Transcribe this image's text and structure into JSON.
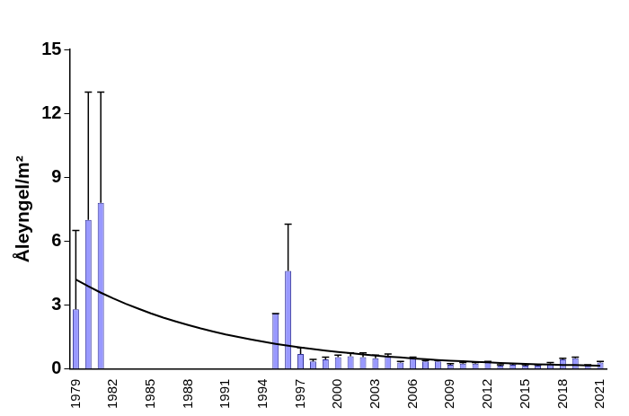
{
  "chart_data": {
    "type": "bar",
    "categories": [
      "1979",
      null,
      null,
      "1982",
      null,
      null,
      "1985",
      null,
      null,
      "1988",
      null,
      null,
      "1991",
      null,
      null,
      "1994",
      null,
      null,
      "1997",
      null,
      null,
      "2000",
      null,
      null,
      "2003",
      null,
      null,
      "2006",
      null,
      null,
      "2009",
      null,
      null,
      "2012",
      null,
      null,
      "2015",
      null,
      null,
      "2018",
      null,
      null,
      "2021"
    ],
    "series": [
      {
        "type": "bar",
        "color": "#9999ff",
        "values": [
          2.8,
          7.0,
          7.8,
          null,
          null,
          null,
          null,
          null,
          null,
          null,
          null,
          null,
          null,
          null,
          null,
          null,
          2.6,
          4.6,
          0.7,
          0.35,
          0.45,
          0.55,
          0.6,
          0.55,
          0.5,
          0.6,
          0.3,
          0.5,
          0.35,
          0.35,
          0.2,
          0.25,
          0.25,
          0.3,
          0.15,
          0.2,
          0.15,
          0.15,
          0.25,
          0.45,
          0.5,
          0.15,
          0.3
        ],
        "errors": [
          3.7,
          6.0,
          5.2,
          null,
          null,
          null,
          null,
          null,
          null,
          null,
          null,
          null,
          null,
          null,
          null,
          null,
          0,
          2.2,
          0.3,
          0.1,
          0.1,
          0.1,
          0.15,
          0.2,
          0.15,
          0.1,
          0.05,
          0.05,
          0.05,
          0.05,
          0.05,
          0.05,
          0.05,
          0.05,
          0.05,
          0.05,
          0.05,
          0.05,
          0.05,
          0.05,
          0.05,
          0.05,
          0.05
        ]
      },
      {
        "type": "line",
        "color": "#000000",
        "values": [
          4.2,
          3.88,
          3.58,
          3.31,
          3.06,
          2.83,
          2.61,
          2.41,
          2.23,
          2.06,
          1.9,
          1.76,
          1.62,
          1.5,
          1.39,
          1.28,
          1.18,
          1.09,
          1.01,
          0.93,
          0.86,
          0.8,
          0.74,
          0.68,
          0.63,
          0.58,
          0.54,
          0.49,
          0.46,
          0.42,
          0.39,
          0.36,
          0.33,
          0.31,
          0.28,
          0.26,
          0.24,
          0.22,
          0.21,
          0.19,
          0.18,
          0.16,
          0.15
        ]
      }
    ],
    "ylabel": "Åleyngel/m²",
    "ylim": [
      0,
      15
    ],
    "yticks": [
      0,
      3,
      6,
      9,
      12,
      15
    ],
    "grid": false
  }
}
